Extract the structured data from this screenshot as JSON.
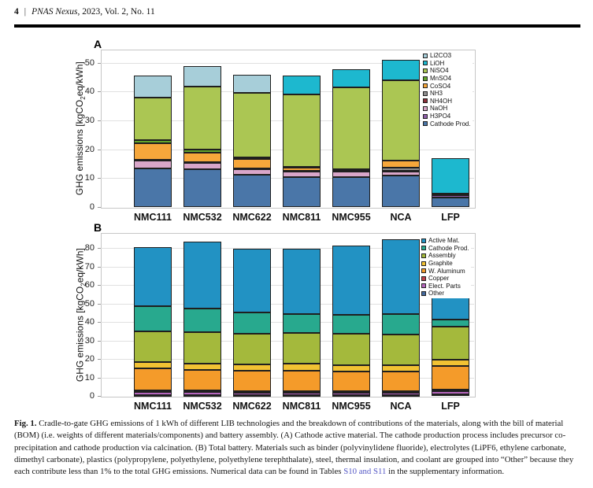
{
  "header": {
    "page_number": "4",
    "separator": "|",
    "journal_name": "PNAS Nexus",
    "journal_rest": ", 2023, Vol. 2, No. 11"
  },
  "chart_data": [
    {
      "id": "A",
      "panel_label": "A",
      "type": "bar",
      "stacked": true,
      "categories": [
        "NMC111",
        "NMC532",
        "NMC622",
        "NMC811",
        "NMC955",
        "NCA",
        "LFP"
      ],
      "ylabel": {
        "pre": "GHG emissions [kgCO",
        "sub": "2",
        "post": "eq/kWh]"
      },
      "ylim": [
        0,
        54.5
      ],
      "yticks": [
        0,
        10,
        20,
        30,
        40,
        50
      ],
      "grid": true,
      "legend_position": "top-right-inside",
      "series_bottom_to_top": [
        {
          "name": "Cathode Prod.",
          "color": "#4a76a8",
          "values": [
            13.4,
            13.0,
            11.3,
            10.4,
            10.4,
            11.0,
            3.3
          ]
        },
        {
          "name": "H3PO4",
          "color": "#8e5fa8",
          "values": [
            0,
            0,
            0,
            0,
            0,
            0,
            0.8
          ]
        },
        {
          "name": "NaOH",
          "color": "#d9a6c9",
          "values": [
            2.6,
            2.2,
            1.8,
            1.8,
            1.8,
            1.4,
            0.6
          ]
        },
        {
          "name": "NH4OH",
          "color": "#8c2f39",
          "values": [
            0.3,
            0.3,
            0.2,
            0.2,
            0.2,
            0.2,
            0
          ]
        },
        {
          "name": "NH3",
          "color": "#8f8f8f",
          "values": [
            0,
            0,
            0,
            0,
            0,
            1.1,
            0
          ]
        },
        {
          "name": "CoSO4",
          "color": "#f6a73b",
          "values": [
            5.9,
            3.4,
            3.3,
            1.2,
            0.6,
            2.4,
            0
          ]
        },
        {
          "name": "MnSO4",
          "color": "#62a52c",
          "values": [
            1.0,
            1.0,
            0.6,
            0.3,
            0,
            0,
            0
          ]
        },
        {
          "name": "NiSO4",
          "color": "#abc653",
          "values": [
            14.7,
            21.9,
            22.4,
            25.2,
            28.3,
            27.7,
            0
          ]
        },
        {
          "name": "LiOH",
          "color": "#1db8cf",
          "values": [
            0,
            0,
            0,
            6.4,
            6.5,
            7.1,
            12.3
          ]
        },
        {
          "name": "Li2CO3",
          "color": "#a7ced9",
          "values": [
            7.5,
            7.1,
            6.2,
            0,
            0,
            0,
            0
          ]
        }
      ]
    },
    {
      "id": "B",
      "panel_label": "B",
      "type": "bar",
      "stacked": true,
      "categories": [
        "NMC111",
        "NMC532",
        "NMC622",
        "NMC811",
        "NMC955",
        "NCA",
        "LFP"
      ],
      "ylabel": {
        "pre": "GHG emissions [kgCO",
        "sub": "2",
        "post": "eq/kWh]"
      },
      "ylim": [
        0,
        88
      ],
      "yticks": [
        0,
        10,
        20,
        30,
        40,
        50,
        60,
        70,
        80
      ],
      "grid": true,
      "legend_position": "top-right-inside",
      "series_bottom_to_top": [
        {
          "name": "Other",
          "color": "#44699d",
          "values": [
            0.6,
            0.6,
            0.6,
            0.6,
            0.6,
            0.6,
            1.0
          ]
        },
        {
          "name": "Elect. Parts",
          "color": "#b565bd",
          "values": [
            1.4,
            1.4,
            1.3,
            1.3,
            1.3,
            1.3,
            1.4
          ]
        },
        {
          "name": "Copper",
          "color": "#bf3f4a",
          "values": [
            0.8,
            0.8,
            0.7,
            0.6,
            0.6,
            0.6,
            0.9
          ]
        },
        {
          "name": "W. Aluminum",
          "color": "#f49b2a",
          "values": [
            12.2,
            11.4,
            10.9,
            11.2,
            10.7,
            10.7,
            12.7
          ]
        },
        {
          "name": "Graphite",
          "color": "#f2c233",
          "values": [
            3.2,
            3.3,
            3.5,
            3.7,
            3.4,
            3.3,
            3.5
          ]
        },
        {
          "name": "Assembly",
          "color": "#a4b93c",
          "values": [
            16.8,
            16.8,
            16.7,
            16.6,
            16.9,
            16.8,
            17.8
          ]
        },
        {
          "name": "Cathode Prod.",
          "color": "#28a98e",
          "values": [
            13.5,
            12.9,
            11.5,
            10.3,
            10.3,
            11.0,
            4.1
          ]
        },
        {
          "name": "Active Mat.",
          "color": "#2292c3",
          "values": [
            32.0,
            36.3,
            34.5,
            35.2,
            37.5,
            40.2,
            13.6
          ]
        }
      ]
    }
  ],
  "caption": {
    "fig_label": "Fig. 1.",
    "body_before_link": " Cradle-to-gate GHG emissions of 1 kWh of different LIB technologies and the breakdown of contributions of the materials, along with the bill of material (BOM) (i.e. weights of different materials/components) and battery assembly. (A) Cathode active material. The cathode production process includes precursor co-precipitation and cathode production via calcination. (B) Total battery. Materials such as binder (polyvinylidene fluoride), electrolytes (LiPF6, ethylene carbonate, dimethyl carbonate), plastics (polypropylene, polyethylene, polyethylene terephthalate), steel, thermal insulation, and coolant are grouped into “Other” because they each contribute less than 1% to the total GHG emissions. Numerical data can be found in Tables ",
    "link_text": "S10 and S11",
    "body_after_link": " in the supplementary information."
  }
}
